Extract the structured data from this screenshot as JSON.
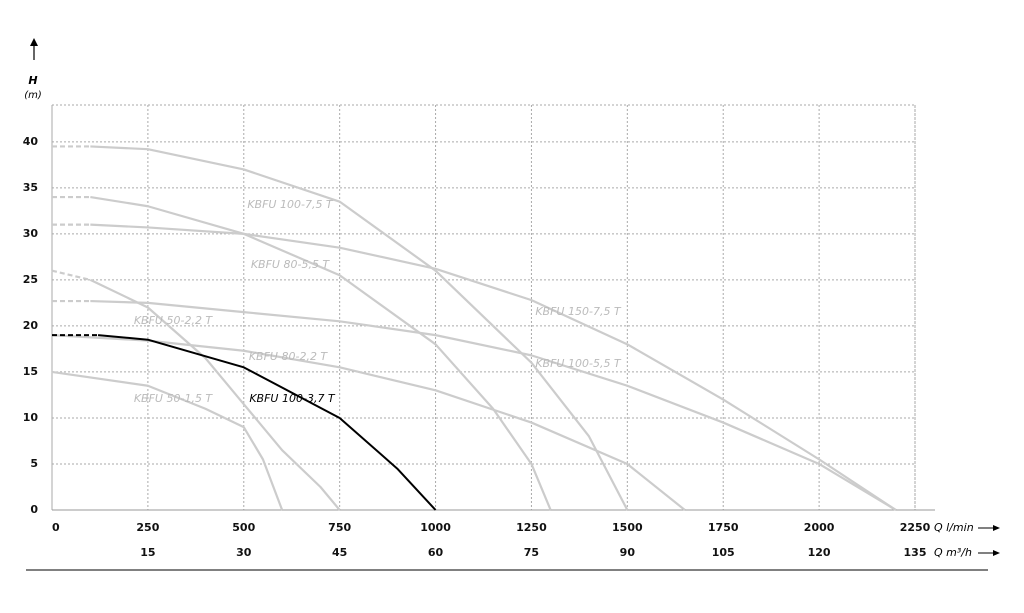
{
  "chart_data": {
    "type": "line",
    "y_label": "H",
    "y_unit": "(m)",
    "x_label": "Q l/min",
    "x2_label": "Q m³/h",
    "xlim": [
      0,
      2250
    ],
    "xticks": [
      0,
      250,
      500,
      750,
      1000,
      1250,
      1500,
      1750,
      2000,
      2250
    ],
    "x2lim": [
      0,
      135
    ],
    "x2ticks": [
      15,
      30,
      45,
      60,
      75,
      90,
      105,
      120,
      135
    ],
    "ylim": [
      0,
      44
    ],
    "yticks": [
      0,
      5,
      10,
      15,
      20,
      25,
      30,
      35,
      40
    ],
    "grid": true,
    "series": [
      {
        "name": "KBFU 100-7,5 T",
        "color": "#cccccc",
        "dashed_start": true,
        "x": [
          0,
          100,
          250,
          500,
          750,
          1000,
          1250,
          1400,
          1500
        ],
        "values": [
          39.5,
          39.5,
          39.2,
          37,
          33.5,
          26,
          16,
          8,
          0
        ]
      },
      {
        "name": "KBFU 80-5,5 T",
        "color": "#cccccc",
        "dashed_start": true,
        "x": [
          0,
          100,
          250,
          500,
          750,
          1000,
          1150,
          1250,
          1300
        ],
        "values": [
          34,
          34,
          33,
          30,
          25.5,
          18,
          11,
          5,
          0
        ]
      },
      {
        "name": "KBFU 150-7,5 T",
        "color": "#cccccc",
        "dashed_start": true,
        "x": [
          0,
          100,
          250,
          500,
          750,
          1000,
          1250,
          1500,
          1750,
          2000,
          2200
        ],
        "values": [
          31,
          31,
          30.7,
          30,
          28.5,
          26.2,
          22.8,
          18,
          12,
          5.5,
          0
        ]
      },
      {
        "name": "KBFU 50-2,2 T",
        "color": "#cccccc",
        "dashed_start": true,
        "x": [
          0,
          100,
          250,
          400,
          500,
          600,
          700,
          750
        ],
        "values": [
          26,
          25,
          22,
          16.5,
          11.5,
          6.5,
          2.5,
          0
        ]
      },
      {
        "name": "KBFU 100-5,5 T",
        "color": "#cccccc",
        "dashed_start": true,
        "x": [
          0,
          100,
          250,
          500,
          750,
          1000,
          1250,
          1500,
          1750,
          2000,
          2200
        ],
        "values": [
          22.7,
          22.7,
          22.5,
          21.5,
          20.5,
          19,
          16.8,
          13.5,
          9.5,
          5,
          0
        ]
      },
      {
        "name": "KBFU 80-2,2 T",
        "color": "#cccccc",
        "dashed_start": false,
        "x": [
          0,
          250,
          500,
          750,
          1000,
          1250,
          1500,
          1650
        ],
        "values": [
          19,
          18.4,
          17.3,
          15.5,
          13,
          9.5,
          5,
          0
        ]
      },
      {
        "name": "KBFU 50-1,5 T",
        "color": "#cccccc",
        "dashed_start": false,
        "x": [
          0,
          250,
          400,
          500,
          550,
          600
        ],
        "values": [
          15,
          13.5,
          11,
          9,
          5.5,
          0
        ]
      },
      {
        "name": "KBFU 100-3,7 T",
        "color": "#000000",
        "dashed_start": true,
        "x": [
          0,
          120,
          250,
          500,
          750,
          900,
          1000
        ],
        "values": [
          19,
          19,
          18.5,
          15.5,
          10,
          4.5,
          0
        ]
      }
    ]
  }
}
